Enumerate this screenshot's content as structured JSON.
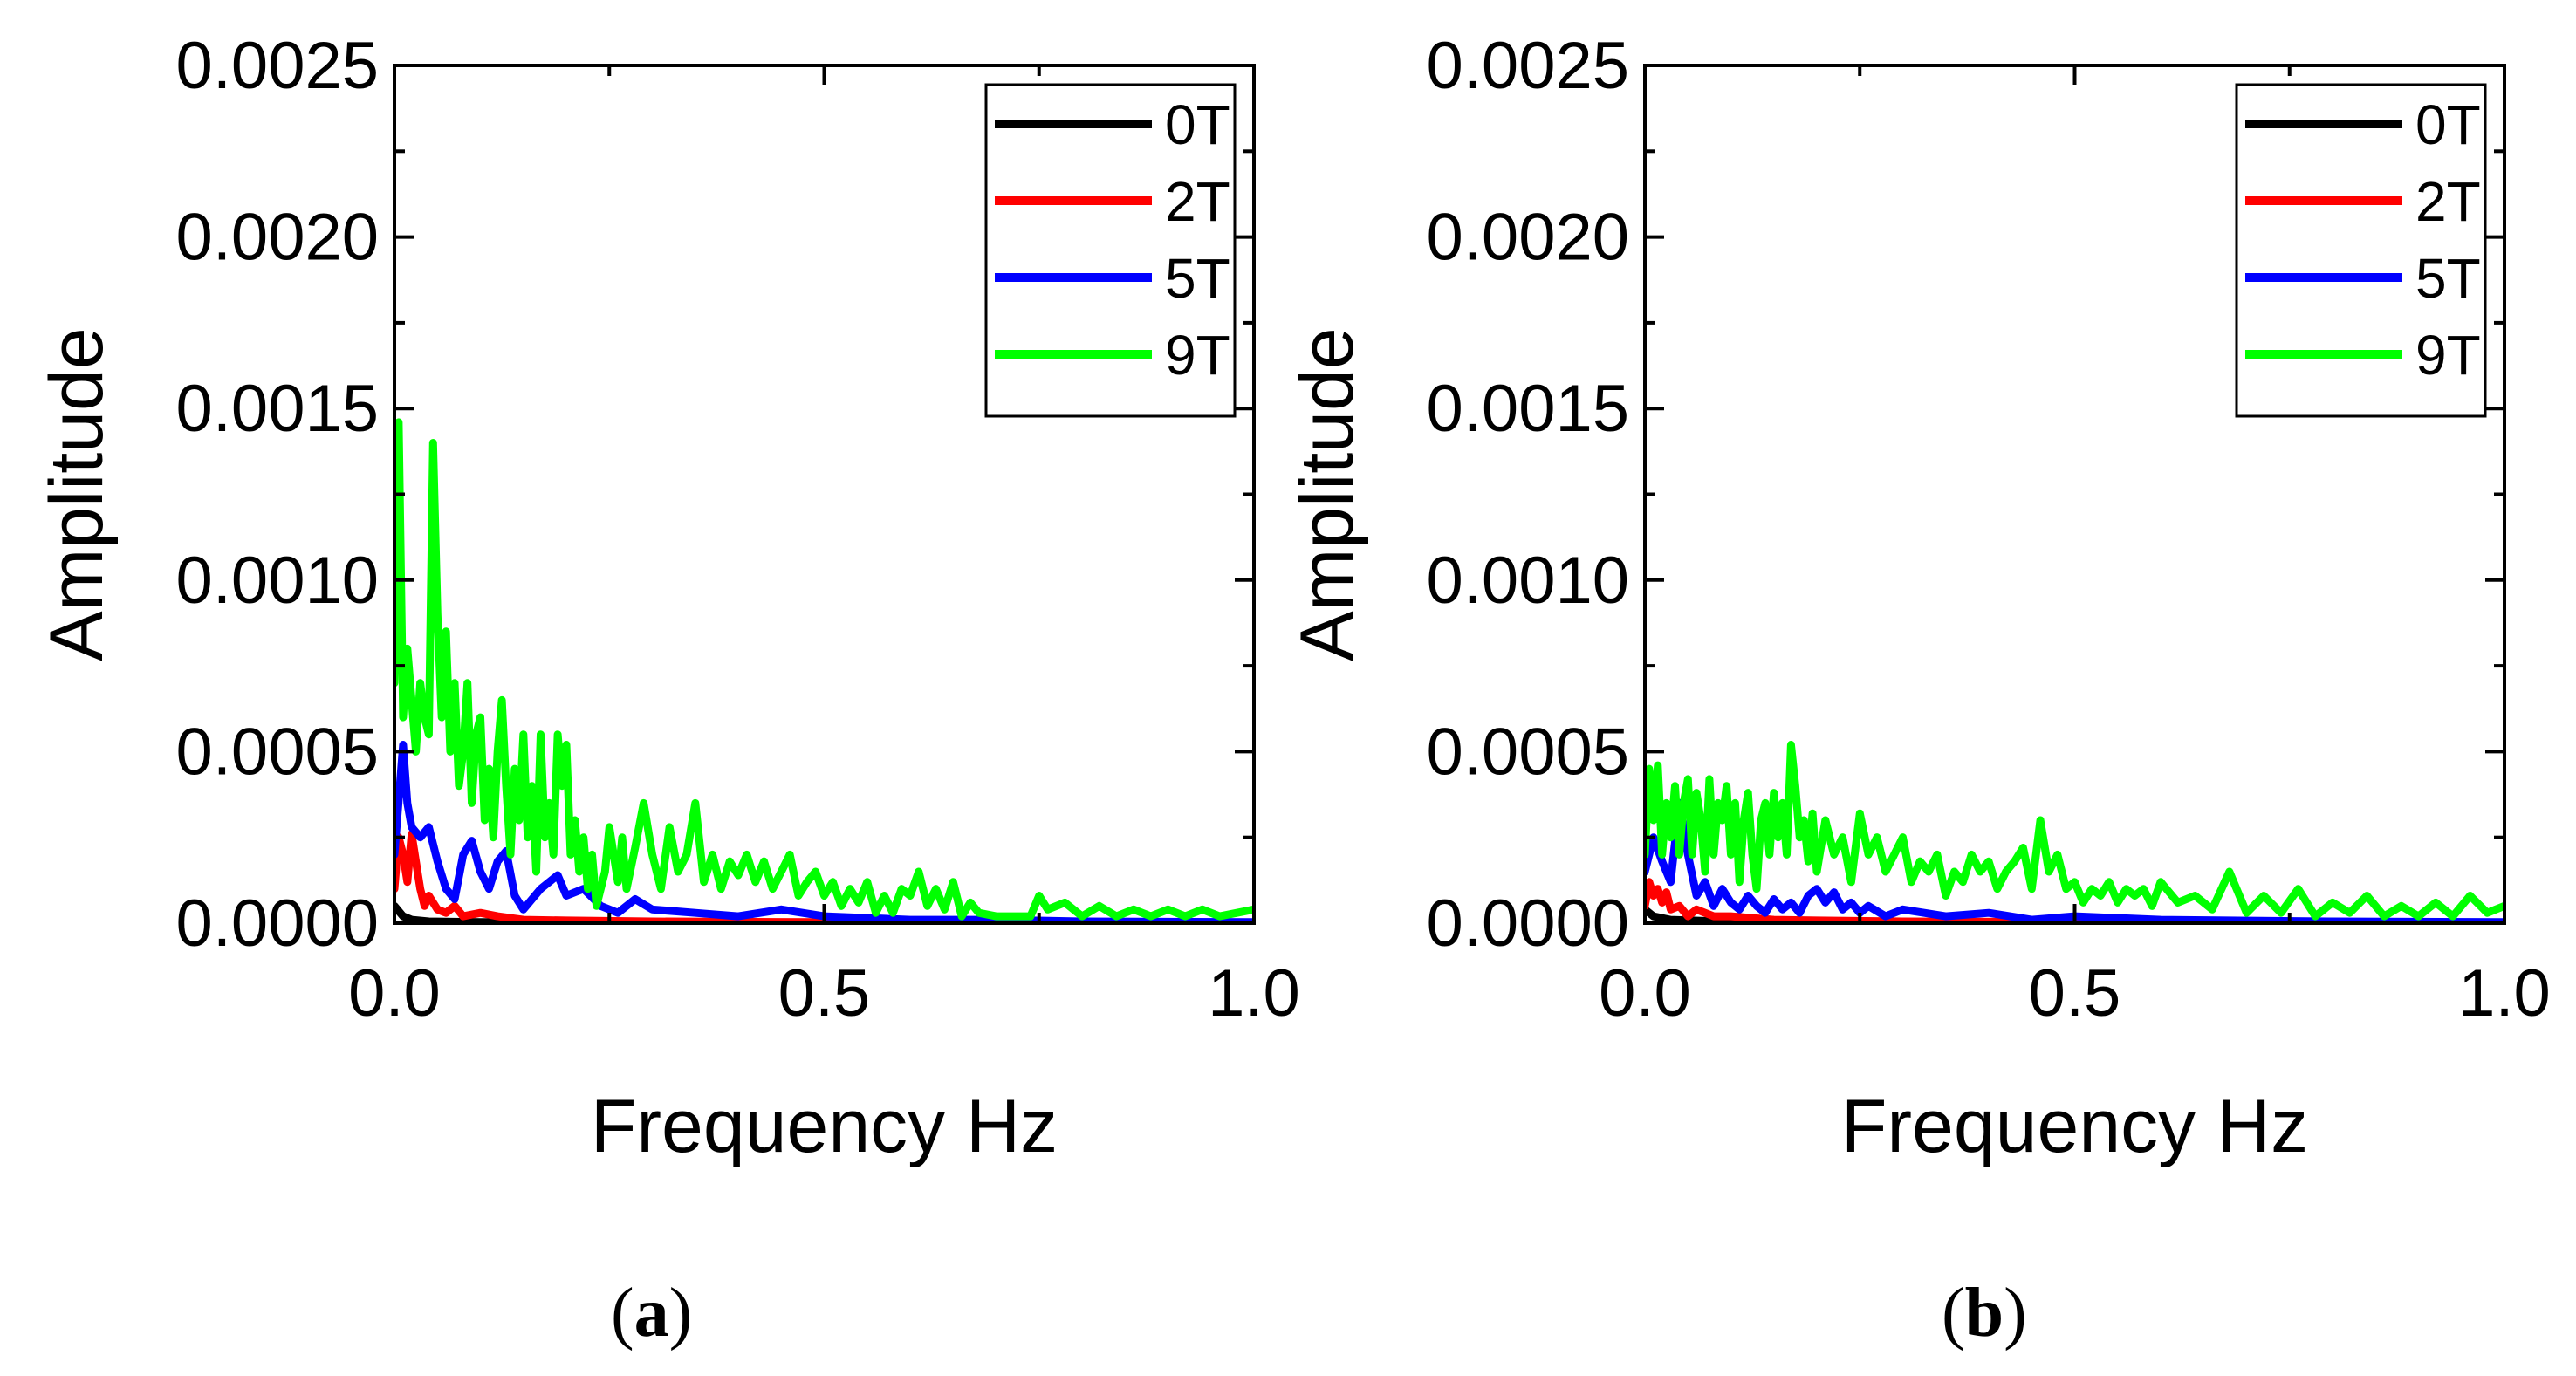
{
  "chart_data": [
    {
      "type": "line",
      "panel_label": "a",
      "xlabel": "Frequency Hz",
      "ylabel": "Amplitude",
      "xlim": [
        0,
        1.0
      ],
      "ylim": [
        0,
        0.0025
      ],
      "x_ticks": [
        "0.0",
        "0.5",
        "1.0"
      ],
      "y_ticks": [
        "0.0000",
        "0.0005",
        "0.0010",
        "0.0015",
        "0.0020",
        "0.0025"
      ],
      "legend_position": "top-right",
      "series": [
        {
          "name": "0T",
          "color": "#000000",
          "x": [
            0.0,
            0.01,
            0.02,
            0.04,
            0.1,
            0.3,
            0.6,
            1.0
          ],
          "y": [
            5e-05,
            2e-05,
            1e-05,
            5e-06,
            3e-06,
            2e-06,
            1e-06,
            1e-06
          ]
        },
        {
          "name": "2T",
          "color": "#ff0000",
          "x": [
            0.0,
            0.005,
            0.01,
            0.015,
            0.02,
            0.025,
            0.03,
            0.035,
            0.04,
            0.05,
            0.06,
            0.07,
            0.08,
            0.1,
            0.12,
            0.15,
            0.2,
            0.3,
            0.5,
            1.0
          ],
          "y": [
            0.0001,
            0.00025,
            0.0002,
            0.00012,
            0.00026,
            0.00018,
            0.0001,
            5e-05,
            8e-05,
            4e-05,
            3e-05,
            5e-05,
            2e-05,
            3e-05,
            2e-05,
            1e-05,
            8e-06,
            5e-06,
            3e-06,
            2e-06
          ]
        },
        {
          "name": "5T",
          "color": "#0000ff",
          "x": [
            0.0,
            0.01,
            0.015,
            0.02,
            0.03,
            0.04,
            0.05,
            0.06,
            0.07,
            0.08,
            0.09,
            0.1,
            0.11,
            0.12,
            0.13,
            0.14,
            0.15,
            0.17,
            0.19,
            0.2,
            0.22,
            0.24,
            0.26,
            0.28,
            0.3,
            0.35,
            0.4,
            0.45,
            0.5,
            0.6,
            0.7,
            0.8,
            1.0
          ],
          "y": [
            0.0002,
            0.00052,
            0.00035,
            0.00028,
            0.00025,
            0.00028,
            0.00018,
            0.0001,
            7e-05,
            0.0002,
            0.00024,
            0.00015,
            0.0001,
            0.00018,
            0.00021,
            8e-05,
            4e-05,
            0.0001,
            0.00014,
            8e-05,
            0.0001,
            5e-05,
            3e-05,
            7e-05,
            4e-05,
            3e-05,
            2e-05,
            4e-05,
            2e-05,
            1e-05,
            1e-05,
            5e-06,
            3e-06
          ]
        },
        {
          "name": "9T",
          "color": "#00ff00",
          "x": [
            0.0,
            0.005,
            0.01,
            0.015,
            0.02,
            0.025,
            0.03,
            0.035,
            0.04,
            0.045,
            0.05,
            0.055,
            0.06,
            0.065,
            0.07,
            0.075,
            0.08,
            0.085,
            0.09,
            0.095,
            0.1,
            0.105,
            0.11,
            0.115,
            0.12,
            0.125,
            0.13,
            0.135,
            0.14,
            0.145,
            0.15,
            0.155,
            0.16,
            0.165,
            0.17,
            0.175,
            0.18,
            0.185,
            0.19,
            0.195,
            0.2,
            0.205,
            0.21,
            0.215,
            0.22,
            0.225,
            0.23,
            0.235,
            0.24,
            0.245,
            0.25,
            0.255,
            0.26,
            0.265,
            0.27,
            0.28,
            0.29,
            0.3,
            0.31,
            0.32,
            0.33,
            0.34,
            0.35,
            0.36,
            0.37,
            0.38,
            0.39,
            0.4,
            0.41,
            0.42,
            0.43,
            0.44,
            0.45,
            0.46,
            0.47,
            0.48,
            0.49,
            0.5,
            0.51,
            0.52,
            0.53,
            0.54,
            0.55,
            0.56,
            0.57,
            0.58,
            0.59,
            0.6,
            0.61,
            0.62,
            0.63,
            0.64,
            0.65,
            0.66,
            0.67,
            0.68,
            0.7,
            0.72,
            0.74,
            0.75,
            0.76,
            0.78,
            0.8,
            0.82,
            0.84,
            0.86,
            0.88,
            0.9,
            0.92,
            0.94,
            0.96,
            0.98,
            1.0
          ],
          "y": [
            0.0007,
            0.00146,
            0.0006,
            0.0008,
            0.00065,
            0.0005,
            0.0007,
            0.0006,
            0.00055,
            0.0014,
            0.0009,
            0.0006,
            0.00085,
            0.0005,
            0.0007,
            0.0004,
            0.0005,
            0.0007,
            0.00035,
            0.00055,
            0.0006,
            0.0003,
            0.00045,
            0.00025,
            0.0005,
            0.00065,
            0.0004,
            0.0002,
            0.00045,
            0.0003,
            0.00055,
            0.00025,
            0.0004,
            0.00015,
            0.00055,
            0.00025,
            0.00035,
            0.0002,
            0.00055,
            0.0004,
            0.00052,
            0.0002,
            0.0003,
            0.00015,
            0.00025,
            0.0001,
            0.0002,
            5e-05,
            0.0001,
            0.00015,
            0.00028,
            0.0002,
            0.00012,
            0.00025,
            0.0001,
            0.00022,
            0.00035,
            0.0002,
            0.0001,
            0.00028,
            0.00015,
            0.0002,
            0.00035,
            0.00012,
            0.0002,
            0.0001,
            0.00018,
            0.00014,
            0.0002,
            0.00012,
            0.00018,
            0.0001,
            0.00015,
            0.0002,
            8e-05,
            0.00012,
            0.00015,
            8e-05,
            0.00012,
            5e-05,
            0.0001,
            6e-05,
            0.00012,
            3e-05,
            8e-05,
            3e-05,
            0.0001,
            8e-05,
            0.00015,
            5e-05,
            0.0001,
            4e-05,
            0.00012,
            2e-05,
            6e-05,
            3e-05,
            2e-05,
            2e-05,
            2e-05,
            8e-05,
            4e-05,
            6e-05,
            2e-05,
            5e-05,
            2e-05,
            4e-05,
            2e-05,
            4e-05,
            2e-05,
            4e-05,
            2e-05,
            3e-05,
            4e-05
          ]
        }
      ]
    },
    {
      "type": "line",
      "panel_label": "b",
      "xlabel": "Frequency Hz",
      "ylabel": "Amplitude",
      "xlim": [
        0,
        1.0
      ],
      "ylim": [
        0,
        0.0025
      ],
      "x_ticks": [
        "0.0",
        "0.5",
        "1.0"
      ],
      "y_ticks": [
        "0.0000",
        "0.0005",
        "0.0010",
        "0.0015",
        "0.0020",
        "0.0025"
      ],
      "legend_position": "top-right",
      "series": [
        {
          "name": "0T",
          "color": "#000000",
          "x": [
            0.0,
            0.01,
            0.03,
            0.1,
            0.3,
            0.6,
            1.0
          ],
          "y": [
            4e-05,
            2e-05,
            1e-05,
            4e-06,
            2e-06,
            1e-06,
            1e-06
          ]
        },
        {
          "name": "2T",
          "color": "#ff0000",
          "x": [
            0.0,
            0.005,
            0.01,
            0.015,
            0.02,
            0.025,
            0.03,
            0.04,
            0.05,
            0.06,
            0.08,
            0.1,
            0.15,
            0.2,
            0.3,
            0.5,
            1.0
          ],
          "y": [
            5e-05,
            0.00012,
            8e-05,
            0.0001,
            6e-05,
            9e-05,
            4e-05,
            5e-05,
            2e-05,
            4e-05,
            2e-05,
            2e-05,
            1e-05,
            8e-06,
            5e-06,
            3e-06,
            2e-06
          ]
        },
        {
          "name": "5T",
          "color": "#0000ff",
          "x": [
            0.0,
            0.01,
            0.02,
            0.03,
            0.04,
            0.05,
            0.06,
            0.07,
            0.08,
            0.09,
            0.1,
            0.11,
            0.12,
            0.13,
            0.14,
            0.15,
            0.16,
            0.17,
            0.18,
            0.19,
            0.2,
            0.21,
            0.22,
            0.23,
            0.24,
            0.25,
            0.26,
            0.28,
            0.3,
            0.35,
            0.4,
            0.45,
            0.5,
            0.6,
            0.8,
            1.0
          ],
          "y": [
            0.00015,
            0.00025,
            0.00018,
            0.00012,
            0.00035,
            0.0002,
            8e-05,
            0.00012,
            5e-05,
            0.0001,
            6e-05,
            4e-05,
            8e-05,
            5e-05,
            3e-05,
            7e-05,
            4e-05,
            6e-05,
            3e-05,
            8e-05,
            0.0001,
            6e-05,
            9e-05,
            4e-05,
            6e-05,
            3e-05,
            5e-05,
            2e-05,
            4e-05,
            2e-05,
            3e-05,
            1e-05,
            2e-05,
            1e-05,
            5e-06,
            3e-06
          ]
        },
        {
          "name": "9T",
          "color": "#00ff00",
          "x": [
            0.0,
            0.005,
            0.01,
            0.015,
            0.02,
            0.025,
            0.03,
            0.035,
            0.04,
            0.045,
            0.05,
            0.055,
            0.06,
            0.065,
            0.07,
            0.075,
            0.08,
            0.085,
            0.09,
            0.095,
            0.1,
            0.105,
            0.11,
            0.115,
            0.12,
            0.125,
            0.13,
            0.135,
            0.14,
            0.145,
            0.15,
            0.155,
            0.16,
            0.165,
            0.17,
            0.175,
            0.18,
            0.185,
            0.19,
            0.195,
            0.2,
            0.21,
            0.22,
            0.23,
            0.24,
            0.25,
            0.26,
            0.27,
            0.28,
            0.29,
            0.3,
            0.31,
            0.32,
            0.33,
            0.34,
            0.35,
            0.36,
            0.37,
            0.38,
            0.39,
            0.4,
            0.41,
            0.42,
            0.43,
            0.44,
            0.45,
            0.46,
            0.47,
            0.48,
            0.49,
            0.5,
            0.51,
            0.52,
            0.53,
            0.54,
            0.55,
            0.56,
            0.57,
            0.58,
            0.59,
            0.6,
            0.62,
            0.64,
            0.66,
            0.68,
            0.7,
            0.72,
            0.74,
            0.76,
            0.78,
            0.8,
            0.82,
            0.84,
            0.86,
            0.88,
            0.9,
            0.92,
            0.94,
            0.96,
            0.98,
            1.0
          ],
          "y": [
            0.0002,
            0.00045,
            0.0003,
            0.00046,
            0.0002,
            0.00035,
            0.00025,
            0.0004,
            0.0002,
            0.00035,
            0.00042,
            0.0002,
            0.00038,
            0.0003,
            0.00015,
            0.00042,
            0.0002,
            0.00035,
            0.0003,
            0.0004,
            0.0002,
            0.00035,
            0.00012,
            0.0003,
            0.00038,
            0.0002,
            0.0001,
            0.0003,
            0.00035,
            0.0002,
            0.00038,
            0.00025,
            0.00035,
            0.0002,
            0.00052,
            0.0004,
            0.00025,
            0.0003,
            0.00018,
            0.00032,
            0.00015,
            0.0003,
            0.0002,
            0.00025,
            0.00012,
            0.00032,
            0.0002,
            0.00025,
            0.00015,
            0.0002,
            0.00025,
            0.00012,
            0.00018,
            0.00015,
            0.0002,
            8e-05,
            0.00015,
            0.00012,
            0.0002,
            0.00015,
            0.00018,
            0.0001,
            0.00015,
            0.00018,
            0.00022,
            0.0001,
            0.0003,
            0.00015,
            0.0002,
            0.0001,
            0.00012,
            6e-05,
            0.0001,
            8e-05,
            0.00012,
            6e-05,
            0.0001,
            8e-05,
            0.0001,
            5e-05,
            0.00012,
            6e-05,
            8e-05,
            4e-05,
            0.00015,
            3e-05,
            8e-05,
            3e-05,
            0.0001,
            2e-05,
            6e-05,
            3e-05,
            8e-05,
            2e-05,
            5e-05,
            2e-05,
            6e-05,
            2e-05,
            8e-05,
            3e-05,
            5e-05
          ]
        }
      ]
    }
  ],
  "captions": [
    "a",
    "b"
  ]
}
